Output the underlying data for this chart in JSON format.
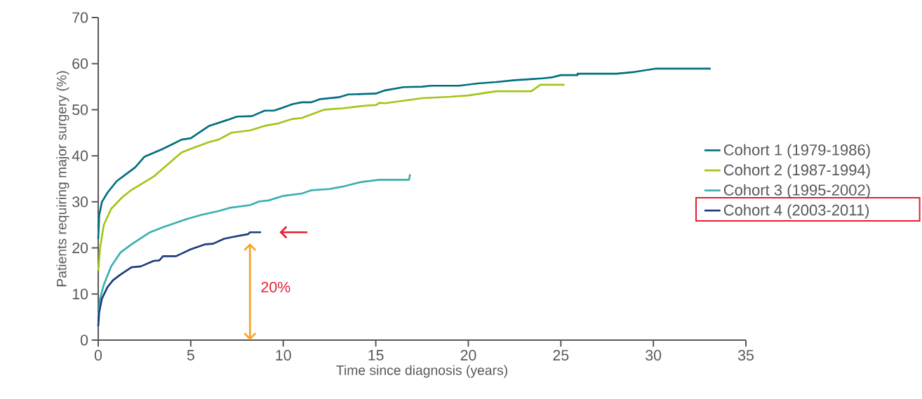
{
  "chart_data": {
    "type": "step",
    "xlabel": "Time since diagnosis (years)",
    "ylabel": "Patients requiring major surgery (%)",
    "xlim": [
      0,
      35
    ],
    "xticks": [
      0,
      5,
      10,
      15,
      20,
      25,
      30,
      35
    ],
    "ylim": [
      0,
      70
    ],
    "yticks": [
      0,
      10,
      20,
      30,
      40,
      50,
      60,
      70
    ],
    "grid": false,
    "legend": "right",
    "line_style": "solid",
    "annotations": [
      "20%"
    ],
    "series": [
      {
        "name": "Cohort 1 (1979-1986)",
        "color": "#00707f",
        "x": [
          0,
          0.05,
          0.2,
          0.5,
          1,
          2,
          2.5,
          3.5,
          4.5,
          5,
          6,
          7,
          7.5,
          8.3,
          9,
          9.5,
          10,
          10.5,
          11,
          11.5,
          12,
          13,
          13.5,
          15,
          15.5,
          16.5,
          17.5,
          18,
          19.5,
          20.5,
          21.5,
          22.5,
          24,
          24.5,
          25,
          25.9,
          25.9,
          28,
          29,
          30.1,
          33.1
        ],
        "values": [
          22,
          27,
          30,
          32,
          34.5,
          37.5,
          39.8,
          41.5,
          43.5,
          43.8,
          46.5,
          47.8,
          48.5,
          48.6,
          49.8,
          49.8,
          50.5,
          51.2,
          51.6,
          51.6,
          52.3,
          52.7,
          53.3,
          53.5,
          54.2,
          54.9,
          55,
          55.2,
          55.2,
          55.7,
          56,
          56.4,
          56.8,
          57,
          57.5,
          57.5,
          57.8,
          57.8,
          58.2,
          58.9,
          58.9
        ]
      },
      {
        "name": "Cohort 2 (1987-1994)",
        "color": "#a2c617",
        "x": [
          0,
          0.1,
          0.3,
          0.7,
          1.3,
          1.8,
          2.3,
          3,
          4.5,
          5,
          6,
          6.5,
          7.2,
          8.2,
          9,
          9.7,
          10.5,
          11,
          12.2,
          13.2,
          14.5,
          15,
          15.2,
          15.5,
          17.5,
          19,
          20,
          21.5,
          23.4,
          23.9,
          25.2
        ],
        "values": [
          15,
          20,
          25,
          28.5,
          31,
          32.6,
          33.8,
          35.5,
          40.7,
          41.5,
          43,
          43.5,
          45,
          45.5,
          46.5,
          47,
          48,
          48.2,
          50,
          50.3,
          50.9,
          51,
          51.5,
          51.4,
          52.5,
          52.8,
          53.1,
          54,
          54,
          55.4,
          55.4
        ]
      },
      {
        "name": "Cohort 3 (1995-2002)",
        "color": "#3bb0b0",
        "x": [
          0,
          0.1,
          0.3,
          0.7,
          1.2,
          1.8,
          2.8,
          3.5,
          4.8,
          5.6,
          6.5,
          7.1,
          8.2,
          8.7,
          9.2,
          10,
          11,
          11.5,
          12.5,
          13.2,
          14.2,
          15.2,
          16.8,
          16.85
        ],
        "values": [
          5,
          9,
          12,
          16,
          19,
          20.8,
          23.4,
          24.5,
          26.3,
          27.2,
          28,
          28.7,
          29.3,
          30.1,
          30.3,
          31.3,
          31.8,
          32.5,
          32.8,
          33.3,
          34.3,
          34.8,
          34.8,
          36
        ]
      },
      {
        "name": "Cohort 4 (2003-2011)",
        "color": "#1e3a7e",
        "x": [
          0,
          0.05,
          0.2,
          0.5,
          0.8,
          1.2,
          1.8,
          2.3,
          3,
          3.3,
          3.5,
          4.2,
          5,
          5.8,
          6.2,
          6.8,
          7.3,
          8.1,
          8.2,
          8.8
        ],
        "values": [
          3,
          6,
          9,
          11.5,
          13,
          14.2,
          15.8,
          16,
          17.2,
          17.3,
          18.2,
          18.2,
          19.7,
          20.8,
          20.9,
          22,
          22.4,
          23,
          23.4,
          23.4
        ]
      }
    ]
  }
}
